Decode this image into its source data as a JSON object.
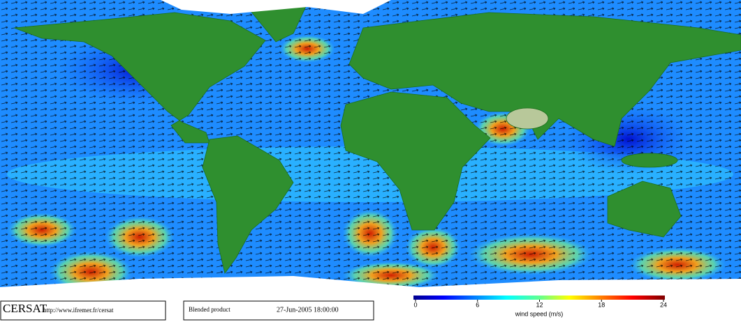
{
  "footer": {
    "logo": "CERSAT",
    "url": "http://www.ifremer.fr/cersat",
    "product": "Blended product",
    "date": "27-Jun-2005 18:00:00"
  },
  "colorbar": {
    "label": "wind speed (m/s)",
    "lim": [
      0,
      24
    ],
    "ticks": [
      0,
      6,
      12,
      18,
      24
    ]
  }
}
